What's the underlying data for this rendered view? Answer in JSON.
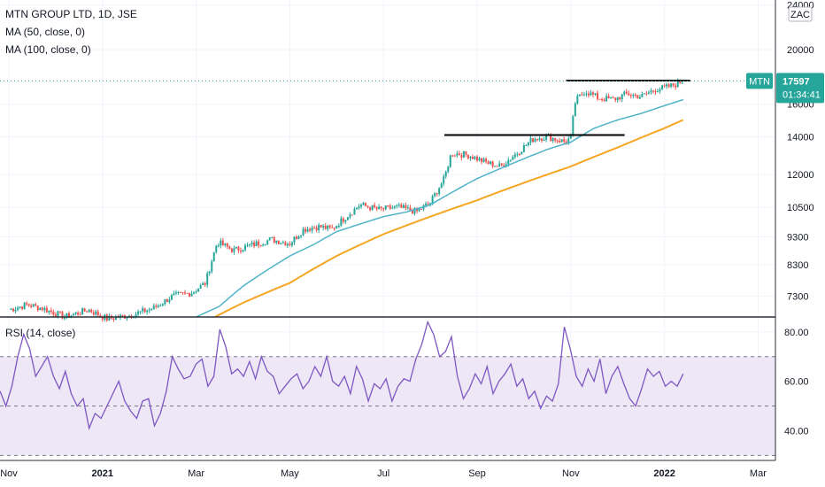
{
  "legend": {
    "title": "MTN GROUP LTD, 1D, JSE",
    "ma50": "MA (50, close, 0)",
    "ma100": "MA (100, close, 0)",
    "rsi": "RSI (14, close)"
  },
  "currency_badge": "ZAC",
  "price_tag": {
    "symbol": "MTN",
    "price": "17597",
    "countdown": "01:34:41",
    "value": 17597
  },
  "colors": {
    "up": "#26a69a",
    "down": "#ef5350",
    "ma50": "#4fb3c8",
    "ma100": "#f5a623",
    "rsi_line": "#7e57c2",
    "rsi_band": "#ede7f6",
    "tag": "#26a69a",
    "grid": "#f0f3fa"
  },
  "chart_data": [
    {
      "type": "candlestick",
      "title": "MTN GROUP LTD, 1D, JSE",
      "y_scale": "log",
      "ylim": [
        6700,
        24500
      ],
      "y_ticks": [
        7300,
        8300,
        9300,
        10500,
        12000,
        14000,
        16000,
        20000,
        24000
      ],
      "y_tick_labels": [
        "7300",
        "8300",
        "9300",
        "10500",
        "12000",
        "14000",
        "16000",
        "20000",
        "24000"
      ],
      "x_ticks": [
        {
          "label": "Nov",
          "x": 0,
          "bold": false
        },
        {
          "label": "2021",
          "x": 2,
          "bold": true
        },
        {
          "label": "Mar",
          "x": 4,
          "bold": false
        },
        {
          "label": "May",
          "x": 6,
          "bold": false
        },
        {
          "label": "Jul",
          "x": 8,
          "bold": false
        },
        {
          "label": "Sep",
          "x": 10,
          "bold": false
        },
        {
          "label": "Nov",
          "x": 12,
          "bold": false
        },
        {
          "label": "2022",
          "x": 14,
          "bold": true
        },
        {
          "label": "Mar",
          "x": 16,
          "bold": false
        }
      ],
      "close_keypoints": [
        [
          0.0,
          6900
        ],
        [
          0.4,
          7050
        ],
        [
          0.7,
          6950
        ],
        [
          1.2,
          6700
        ],
        [
          1.7,
          6900
        ],
        [
          2.1,
          6650
        ],
        [
          2.6,
          6750
        ],
        [
          3.1,
          6950
        ],
        [
          3.5,
          7300
        ],
        [
          3.9,
          7400
        ],
        [
          4.2,
          7700
        ],
        [
          4.45,
          9100
        ],
        [
          4.8,
          8800
        ],
        [
          5.2,
          9000
        ],
        [
          5.6,
          9200
        ],
        [
          6.0,
          9050
        ],
        [
          6.3,
          9600
        ],
        [
          6.6,
          9700
        ],
        [
          6.9,
          9600
        ],
        [
          7.2,
          10100
        ],
        [
          7.5,
          10600
        ],
        [
          7.9,
          10400
        ],
        [
          8.3,
          10500
        ],
        [
          8.7,
          10300
        ],
        [
          9.0,
          10700
        ],
        [
          9.3,
          11800
        ],
        [
          9.45,
          13100
        ],
        [
          9.8,
          13000
        ],
        [
          10.2,
          12600
        ],
        [
          10.5,
          12400
        ],
        [
          10.9,
          13200
        ],
        [
          11.2,
          13900
        ],
        [
          11.5,
          14000
        ],
        [
          11.9,
          13700
        ],
        [
          12.0,
          14000
        ],
        [
          12.1,
          16200
        ],
        [
          12.3,
          16900
        ],
        [
          12.6,
          16400
        ],
        [
          12.9,
          16300
        ],
        [
          13.2,
          16700
        ],
        [
          13.5,
          16500
        ],
        [
          13.8,
          17000
        ],
        [
          14.0,
          17100
        ],
        [
          14.2,
          17300
        ],
        [
          14.4,
          17597
        ]
      ],
      "ma50_keypoints": [
        [
          4.0,
          6700
        ],
        [
          4.5,
          7000
        ],
        [
          5.0,
          7600
        ],
        [
          5.5,
          8100
        ],
        [
          6.0,
          8600
        ],
        [
          6.5,
          9000
        ],
        [
          7.0,
          9500
        ],
        [
          7.5,
          9800
        ],
        [
          8.0,
          10100
        ],
        [
          8.5,
          10300
        ],
        [
          9.0,
          10600
        ],
        [
          9.5,
          11200
        ],
        [
          10.0,
          11800
        ],
        [
          10.5,
          12300
        ],
        [
          11.0,
          12800
        ],
        [
          11.5,
          13300
        ],
        [
          12.0,
          13700
        ],
        [
          12.5,
          14500
        ],
        [
          13.0,
          15000
        ],
        [
          13.5,
          15400
        ],
        [
          14.0,
          15900
        ],
        [
          14.4,
          16300
        ]
      ],
      "ma100_keypoints": [
        [
          4.4,
          6700
        ],
        [
          5.0,
          7100
        ],
        [
          6.0,
          7700
        ],
        [
          7.0,
          8600
        ],
        [
          8.0,
          9400
        ],
        [
          9.0,
          10100
        ],
        [
          10.0,
          10800
        ],
        [
          11.0,
          11600
        ],
        [
          12.0,
          12400
        ],
        [
          13.0,
          13400
        ],
        [
          14.0,
          14500
        ],
        [
          14.4,
          15000
        ]
      ],
      "resistance_lines": [
        {
          "x0": 9.3,
          "x1": 13.15,
          "y": 14100
        },
        {
          "x0": 11.9,
          "x1": 14.55,
          "y": 17620
        }
      ]
    },
    {
      "type": "line",
      "title": "RSI (14, close)",
      "ylim": [
        28,
        86
      ],
      "y_ticks": [
        40,
        60,
        80
      ],
      "y_tick_labels": [
        "40.00",
        "60.00",
        "80.00"
      ],
      "band": [
        30,
        70
      ],
      "midline": 50,
      "values": [
        56,
        50,
        58,
        70,
        79,
        73,
        62,
        66,
        70,
        62,
        57,
        64,
        55,
        50,
        53,
        41,
        47,
        45,
        50,
        55,
        60,
        52,
        48,
        45,
        52,
        53,
        42,
        47,
        56,
        70,
        65,
        61,
        62,
        67,
        69,
        58,
        62,
        81,
        74,
        63,
        65,
        62,
        68,
        61,
        70,
        64,
        62,
        55,
        58,
        61,
        63,
        57,
        60,
        66,
        62,
        70,
        60,
        58,
        62,
        55,
        66,
        61,
        52,
        59,
        57,
        61,
        52,
        58,
        61,
        60,
        69,
        75,
        84,
        79,
        70,
        72,
        78,
        62,
        53,
        57,
        63,
        59,
        66,
        55,
        60,
        63,
        67,
        58,
        61,
        53,
        56,
        49,
        54,
        52,
        59,
        82,
        73,
        62,
        58,
        65,
        60,
        69,
        55,
        62,
        66,
        59,
        53,
        50,
        57,
        65,
        62,
        64,
        58,
        60,
        58,
        63
      ]
    }
  ]
}
